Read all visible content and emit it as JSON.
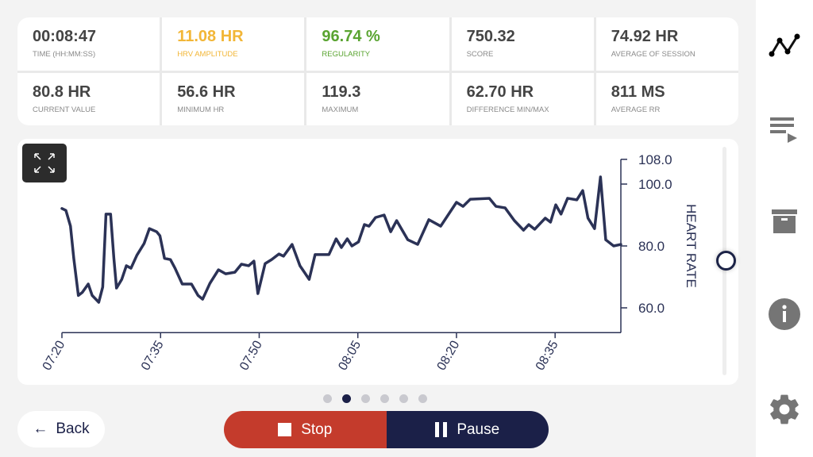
{
  "stats": [
    {
      "value": "00:08:47",
      "label": "TIME (HH:MM:SS)",
      "color": "#444444"
    },
    {
      "value": "11.08 HR",
      "label": "HRV AMPLITUDE",
      "color": "#f2b637"
    },
    {
      "value": "96.74 %",
      "label": "REGULARITY",
      "color": "#5aa431"
    },
    {
      "value": "750.32",
      "label": "SCORE",
      "color": "#444444"
    },
    {
      "value": "74.92 HR",
      "label": "AVERAGE OF SESSION",
      "color": "#444444"
    },
    {
      "value": "80.8 HR",
      "label": "CURRENT VALUE",
      "color": "#444444"
    },
    {
      "value": "56.6 HR",
      "label": "MINIMUM HR",
      "color": "#444444"
    },
    {
      "value": "119.3",
      "label": "MAXIMUM",
      "color": "#444444"
    },
    {
      "value": "62.70 HR",
      "label": "DIFFERENCE MIN/MAX",
      "color": "#444444"
    },
    {
      "value": "811 MS",
      "label": "AVERAGE RR",
      "color": "#444444"
    }
  ],
  "chart_data": {
    "type": "line",
    "ylabel": "HEART RATE",
    "xlabel": "",
    "x_unit": "minutes since 07:20",
    "xlim": [
      0,
      85
    ],
    "ylim": [
      52,
      108
    ],
    "yticks": [
      {
        "v": 60,
        "label": "60.0"
      },
      {
        "v": 80,
        "label": "80.0"
      },
      {
        "v": 100,
        "label": "100.0"
      },
      {
        "v": 108,
        "label": "108.0"
      }
    ],
    "xticks": [
      {
        "v": 0,
        "label": "07:20"
      },
      {
        "v": 15,
        "label": "07:35"
      },
      {
        "v": 30,
        "label": "07:50"
      },
      {
        "v": 45,
        "label": "08:05"
      },
      {
        "v": 60,
        "label": "08:20"
      },
      {
        "v": 75,
        "label": "08:35"
      }
    ],
    "line_color": "#2b3256",
    "series": [
      {
        "name": "Heart rate",
        "x": [
          0,
          0.6,
          1.3,
          1.8,
          2.5,
          3.1,
          4.0,
          4.6,
          5.6,
          6.2,
          6.7,
          7.4,
          7.9,
          8.3,
          9.1,
          9.8,
          10.5,
          11.4,
          12.5,
          13.3,
          14.4,
          14.9,
          15.6,
          16.5,
          17.2,
          18.3,
          19.7,
          20.7,
          21.4,
          22.5,
          23.8,
          24.9,
          26.3,
          27.3,
          28.4,
          29.2,
          29.8,
          30.9,
          31.9,
          33.0,
          33.7,
          35.0,
          36.2,
          37.6,
          38.5,
          40.6,
          41.7,
          42.5,
          43.4,
          44.1,
          45.1,
          46.0,
          46.7,
          47.7,
          49.0,
          50.0,
          50.9,
          52.6,
          54.1,
          55.8,
          57.6,
          60.0,
          61.0,
          62.1,
          65.0,
          66.0,
          67.4,
          68.8,
          70.2,
          71.0,
          71.9,
          73.5,
          74.3,
          75.1,
          75.9,
          76.9,
          78.3,
          79.2,
          80.0,
          81.0,
          81.9,
          82.7,
          83.9,
          85.0
        ],
        "values": [
          92.1,
          91.5,
          86.4,
          76,
          64,
          65,
          67.7,
          64,
          61.8,
          66.7,
          90.3,
          90.3,
          76,
          66.4,
          69.2,
          73.6,
          72.8,
          77,
          80.8,
          85.6,
          84.6,
          83.3,
          76,
          75.6,
          72.8,
          67.7,
          67.7,
          64,
          62.8,
          67.9,
          72.3,
          71,
          71.5,
          74.1,
          73.6,
          75.1,
          64.6,
          74.3,
          75.6,
          77.4,
          76.7,
          80.5,
          73.6,
          69.2,
          77.2,
          77.2,
          82.3,
          79.5,
          82.3,
          80,
          81.3,
          86.9,
          86.4,
          89.2,
          90,
          84.6,
          88.2,
          82,
          80.5,
          88.5,
          86.4,
          94.1,
          92.8,
          95.1,
          95.4,
          92.8,
          92.3,
          88.2,
          85.1,
          86.9,
          85.4,
          89,
          87.7,
          93.3,
          90.3,
          95.4,
          94.9,
          97.9,
          89,
          85.6,
          102.3,
          82,
          80,
          80.5
        ]
      }
    ]
  },
  "pager": {
    "count": 6,
    "active": 1
  },
  "buttons": {
    "back": "Back",
    "stop": "Stop",
    "pause": "Pause"
  },
  "icons": {
    "back": "arrow-left-icon",
    "chart": "chart-line-icon",
    "playlist": "playlist-icon",
    "archive": "archive-icon",
    "info": "info-icon",
    "settings": "gear-icon",
    "expand": "expand-icon"
  }
}
